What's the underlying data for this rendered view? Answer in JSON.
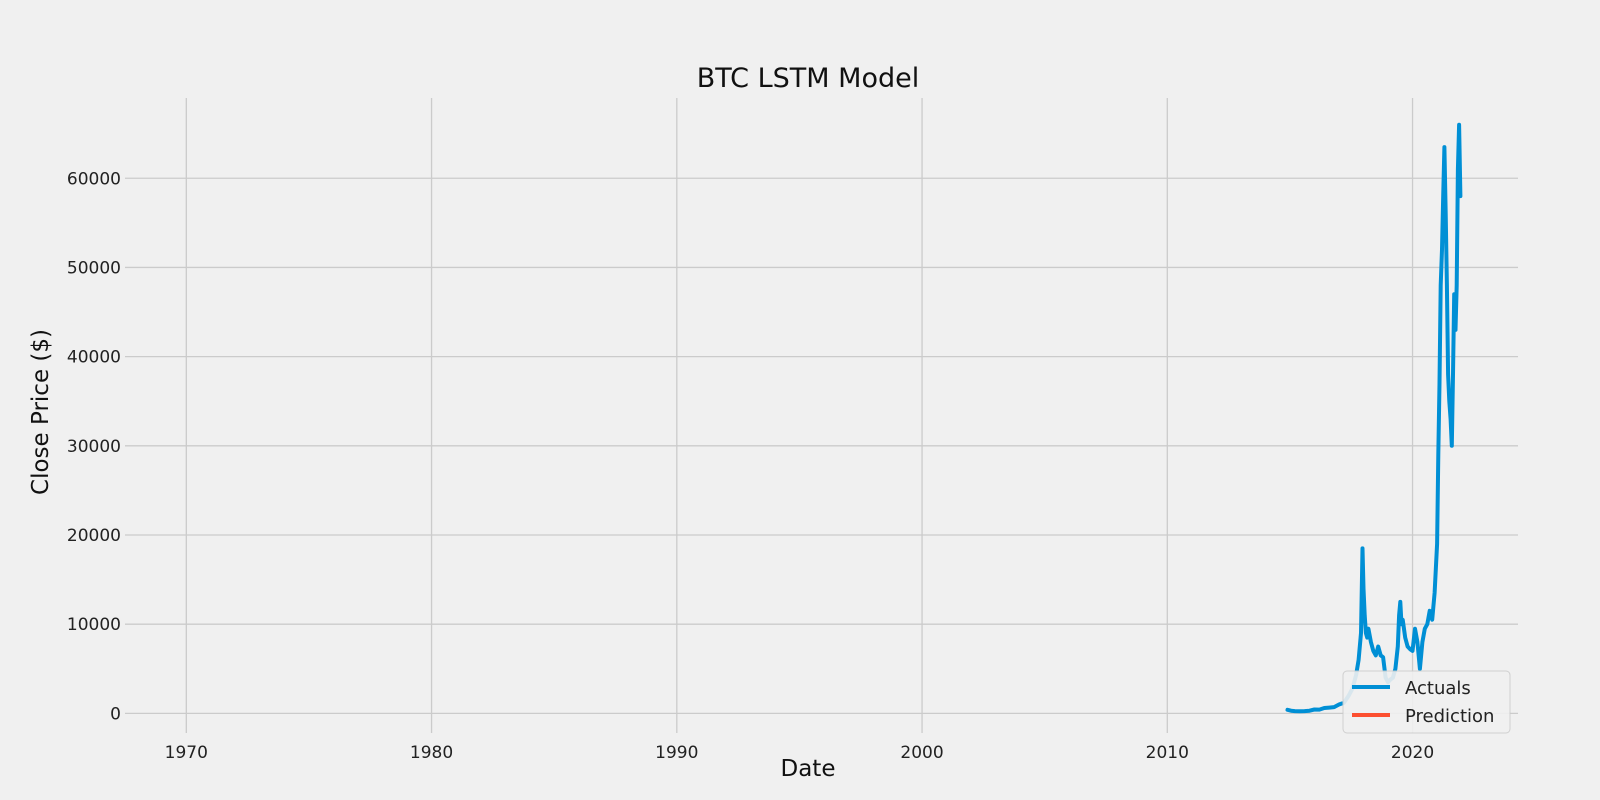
{
  "chart_data": {
    "type": "line",
    "title": "BTC LSTM Model",
    "xlabel": "Date",
    "ylabel": "Close Price ($)",
    "xlim": [
      1967.5,
      2024.3
    ],
    "ylim": [
      -2200,
      69000
    ],
    "xticks": [
      1970,
      1980,
      1990,
      2000,
      2010,
      2020
    ],
    "yticks": [
      0,
      10000,
      20000,
      30000,
      40000,
      50000,
      60000
    ],
    "grid": true,
    "legend_position": "bottom-right",
    "colors": {
      "background": "#f0f0f0",
      "grid": "#cbcbcb",
      "actuals": "#008fd5",
      "prediction": "#fc4f30"
    },
    "series": [
      {
        "name": "Actuals",
        "color": "#008fd5",
        "x": [
          2014.9,
          2015.05,
          2015.2,
          2015.4,
          2015.6,
          2015.8,
          2016.0,
          2016.2,
          2016.4,
          2016.6,
          2016.8,
          2017.0,
          2017.2,
          2017.4,
          2017.55,
          2017.7,
          2017.8,
          2017.9,
          2017.96,
          2018.0,
          2018.05,
          2018.1,
          2018.15,
          2018.2,
          2018.3,
          2018.4,
          2018.5,
          2018.6,
          2018.7,
          2018.8,
          2018.9,
          2019.0,
          2019.1,
          2019.2,
          2019.3,
          2019.4,
          2019.45,
          2019.5,
          2019.55,
          2019.6,
          2019.7,
          2019.8,
          2019.9,
          2020.0,
          2020.1,
          2020.2,
          2020.3,
          2020.4,
          2020.5,
          2020.6,
          2020.7,
          2020.8,
          2020.9,
          2021.0,
          2021.05,
          2021.1,
          2021.15,
          2021.2,
          2021.25,
          2021.3,
          2021.35,
          2021.4,
          2021.45,
          2021.5,
          2021.55,
          2021.6,
          2021.65,
          2021.7,
          2021.75,
          2021.8,
          2021.85,
          2021.9,
          2021.95
        ],
        "y": [
          400,
          300,
          250,
          240,
          260,
          300,
          430,
          420,
          600,
          650,
          700,
          1000,
          1200,
          2000,
          2800,
          4300,
          6000,
          9000,
          18500,
          14000,
          11000,
          9000,
          8500,
          9500,
          8000,
          7000,
          6500,
          7500,
          6500,
          6300,
          4000,
          3500,
          3800,
          4000,
          5000,
          7500,
          11000,
          12500,
          10000,
          10500,
          8500,
          7500,
          7200,
          7000,
          9500,
          8000,
          5000,
          8000,
          9500,
          10000,
          11500,
          10500,
          13500,
          19000,
          29000,
          37000,
          48000,
          52000,
          58000,
          63500,
          56000,
          48000,
          38000,
          35000,
          33000,
          30000,
          38000,
          47000,
          43000,
          48000,
          61000,
          66000,
          58000
        ]
      },
      {
        "name": "Prediction",
        "color": "#fc4f30",
        "x": [],
        "y": []
      }
    ]
  }
}
